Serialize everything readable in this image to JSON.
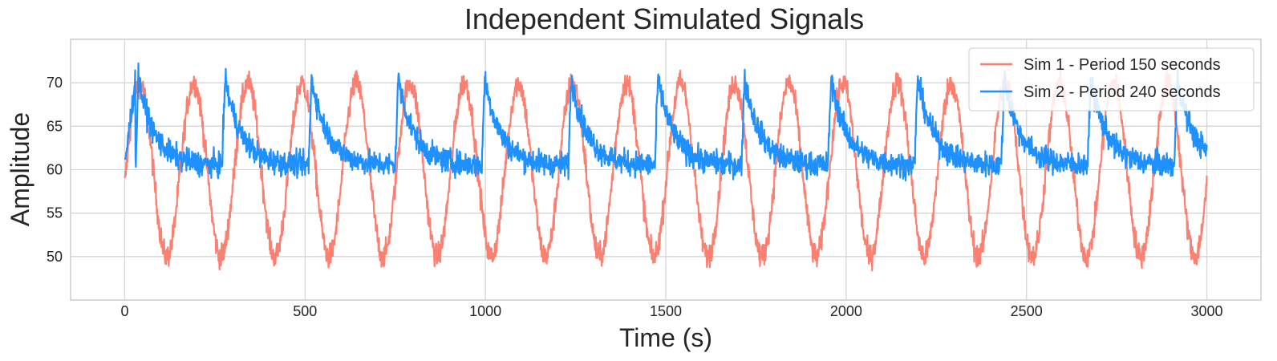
{
  "chart_data": {
    "type": "line",
    "title": "Independent Simulated Signals",
    "xlabel": "Time (s)",
    "ylabel": "Amplitude",
    "xlim": [
      -150,
      3150
    ],
    "ylim": [
      45,
      75
    ],
    "xticks": [
      0,
      500,
      1000,
      1500,
      2000,
      2500,
      3000
    ],
    "yticks": [
      50,
      55,
      60,
      65,
      70
    ],
    "grid": true,
    "legend_position": "top-right",
    "series": [
      {
        "name": "Sim 1 - Period 150 seconds",
        "color": "#fa8072",
        "shape": "sine",
        "period": 150,
        "mean": 60,
        "amplitude": 10,
        "noise": 1.0,
        "x_range": [
          0,
          3000
        ],
        "approx_range": [
          47,
          73
        ]
      },
      {
        "name": "Sim 2 - Period 240 seconds",
        "color": "#1e90ff",
        "shape": "spike-decay",
        "period": 240,
        "baseline": 60.5,
        "peak": 70.5,
        "noise": 1.0,
        "x_range": [
          0,
          3000
        ],
        "approx_range": [
          58,
          73
        ]
      }
    ]
  }
}
